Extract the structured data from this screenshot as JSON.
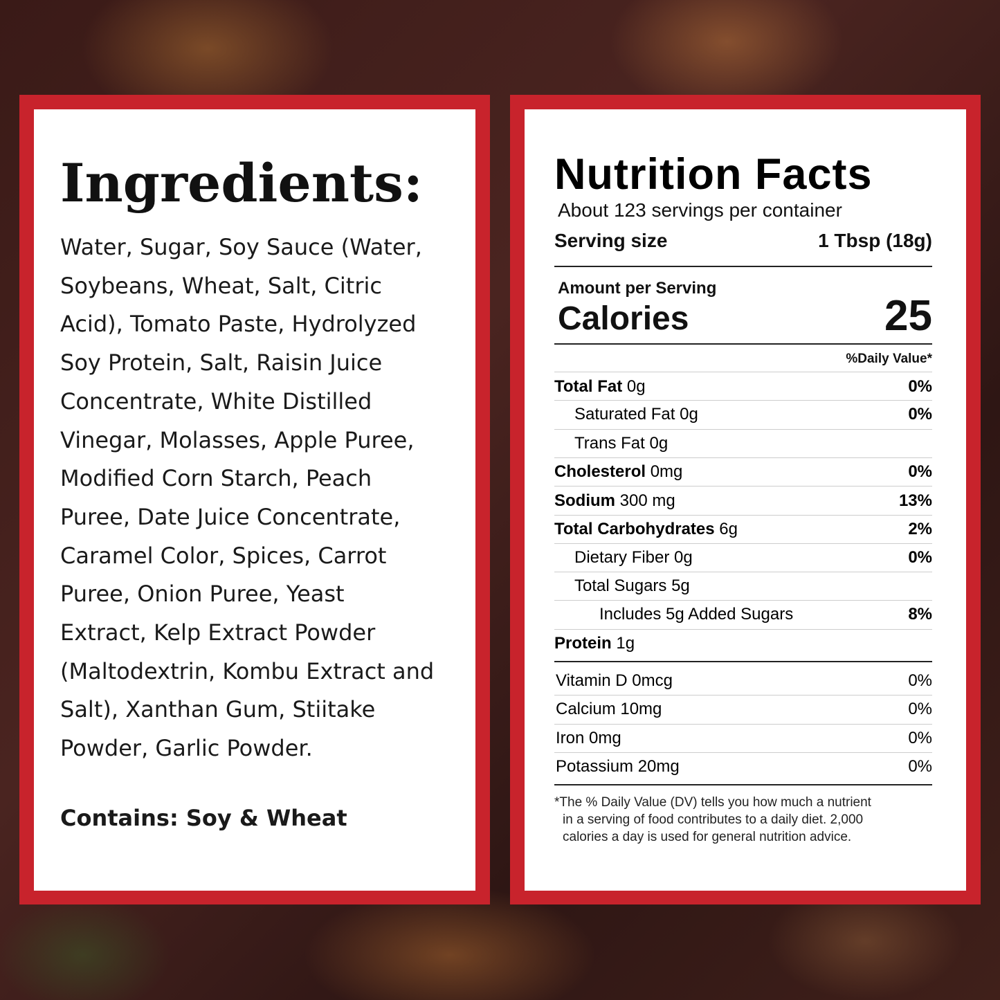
{
  "ingredients": {
    "title": "Ingredients:",
    "lines": [
      "Water, Sugar, Soy Sauce (Water,",
      "Soybeans, Wheat, Salt, Citric",
      "Acid), Tomato Paste, Hydrolyzed",
      "Soy Protein, Salt, Raisin Juice",
      "Concentrate, White Distilled",
      "Vinegar, Molasses, Apple Puree,",
      "Modified Corn Starch, Peach",
      "Puree, Date Juice Concentrate,",
      "Caramel Color, Spices, Carrot",
      "Puree, Onion Puree, Yeast",
      "Extract, Kelp Extract Powder",
      "(Maltodextrin, Kombu Extract and",
      "Salt), Xanthan Gum, Stiitake",
      "Powder, Garlic Powder."
    ],
    "contains": "Contains: Soy & Wheat"
  },
  "nutrition": {
    "title": "Nutrition Facts",
    "servings": "About 123 servings per container",
    "serving_size_label": "Serving size",
    "serving_size_value": "1 Tbsp (18g)",
    "amount_per_serving": "Amount per Serving",
    "calories_label": "Calories",
    "calories_value": "25",
    "daily_value_header": "%Daily Value*",
    "rows": [
      {
        "name": "Total Fat",
        "amount": "0g",
        "dv": "0%"
      },
      {
        "name": "Saturated Fat",
        "amount": "0g",
        "dv": "0%"
      },
      {
        "name": "Trans Fat",
        "amount": "0g"
      },
      {
        "name": "Cholesterol",
        "amount": "0mg",
        "dv": "0%"
      },
      {
        "name": "Sodium",
        "amount": "300 mg",
        "dv": "13%"
      },
      {
        "name": "Total Carbohydrates",
        "amount": "6g",
        "dv": "2%"
      },
      {
        "name": "Dietary Fiber",
        "amount": "0g",
        "dv": "0%"
      },
      {
        "name": "Total Sugars",
        "amount": "5g"
      },
      {
        "name": "Includes 5g Added Sugars",
        "dv": "8%"
      },
      {
        "name": "Protein",
        "amount": "1g"
      }
    ],
    "vitamins": [
      {
        "name": "Vitamin D 0mcg",
        "dv": "0%"
      },
      {
        "name": "Calcium 10mg",
        "dv": "0%"
      },
      {
        "name": "Iron 0mg",
        "dv": "0%"
      },
      {
        "name": "Potassium 20mg",
        "dv": "0%"
      }
    ],
    "footnote": [
      "*The % Daily Value (DV) tells you how much a nutrient",
      "in a serving of food contributes to a daily diet. 2,000",
      "calories a day is used for general nutrition advice."
    ]
  }
}
